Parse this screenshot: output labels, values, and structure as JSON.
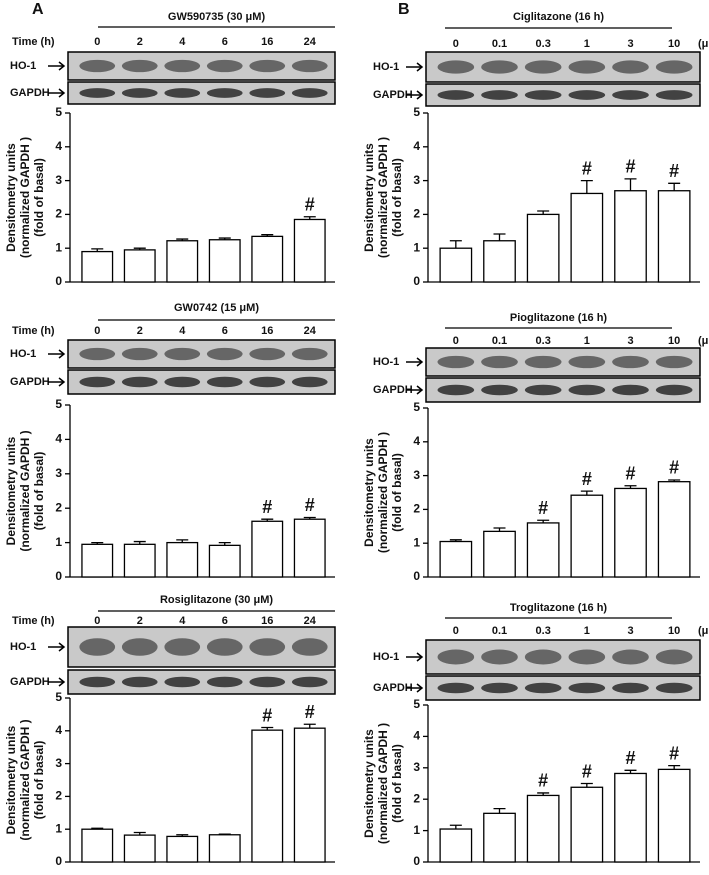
{
  "chart_data": [
    {
      "type": "bar",
      "panel_label": "A",
      "title": "GW590735 (30 μM)",
      "xlabel": "Time (h)",
      "categories": [
        "0",
        "2",
        "4",
        "6",
        "16",
        "24"
      ],
      "values": [
        0.9,
        0.95,
        1.22,
        1.25,
        1.35,
        1.85
      ],
      "errors": [
        0.08,
        0.05,
        0.05,
        0.05,
        0.05,
        0.08
      ],
      "significance": [
        null,
        null,
        null,
        null,
        null,
        "#"
      ],
      "blot_labels": [
        "HO-1",
        "GAPDH"
      ],
      "ylabel": [
        "Densitometry units",
        "(normalized GAPDH )",
        "(fold of basal)"
      ],
      "ylim": [
        0,
        5
      ],
      "yticks": [
        0,
        1,
        2,
        3,
        4,
        5
      ],
      "color": "#ffffff"
    },
    {
      "type": "bar",
      "title": "GW0742 (15 μM)",
      "xlabel": "Time (h)",
      "categories": [
        "0",
        "2",
        "4",
        "6",
        "16",
        "24"
      ],
      "values": [
        0.95,
        0.95,
        1.0,
        0.92,
        1.62,
        1.68
      ],
      "errors": [
        0.05,
        0.08,
        0.08,
        0.08,
        0.06,
        0.05
      ],
      "significance": [
        null,
        null,
        null,
        null,
        "#",
        "#"
      ],
      "blot_labels": [
        "HO-1",
        "GAPDH"
      ],
      "ylabel": [
        "Densitometry units",
        "(normalized GAPDH )",
        "(fold of basal)"
      ],
      "ylim": [
        0,
        5
      ],
      "yticks": [
        0,
        1,
        2,
        3,
        4,
        5
      ],
      "color": "#ffffff"
    },
    {
      "type": "bar",
      "title": "Rosiglitazone (30 μM)",
      "xlabel": "Time (h)",
      "categories": [
        "0",
        "2",
        "4",
        "6",
        "16",
        "24"
      ],
      "values": [
        1.0,
        0.82,
        0.78,
        0.83,
        4.02,
        4.08
      ],
      "errors": [
        0.03,
        0.08,
        0.05,
        0.02,
        0.08,
        0.12
      ],
      "significance": [
        null,
        null,
        null,
        null,
        "#",
        "#"
      ],
      "blot_labels": [
        "HO-1",
        "GAPDH"
      ],
      "ylabel": [
        "Densitometry units",
        "(normalized GAPDH )",
        "(fold of basal)"
      ],
      "ylim": [
        0,
        5
      ],
      "yticks": [
        0,
        1,
        2,
        3,
        4,
        5
      ],
      "color": "#ffffff"
    },
    {
      "type": "bar",
      "panel_label": "B",
      "title": "Ciglitazone (16 h)",
      "unit_label": "(μM)",
      "categories": [
        "0",
        "0.1",
        "0.3",
        "1",
        "3",
        "10"
      ],
      "values": [
        1.0,
        1.22,
        2.0,
        2.62,
        2.7,
        2.7
      ],
      "errors": [
        0.22,
        0.2,
        0.1,
        0.38,
        0.35,
        0.22
      ],
      "significance": [
        null,
        null,
        null,
        "#",
        "#",
        "#"
      ],
      "blot_labels": [
        "HO-1",
        "GAPDH"
      ],
      "ylabel": [
        "Densitometry units",
        "(normalized GAPDH )",
        "(fold of basal)"
      ],
      "ylim": [
        0,
        5
      ],
      "yticks": [
        0,
        1,
        2,
        3,
        4,
        5
      ],
      "color": "#ffffff"
    },
    {
      "type": "bar",
      "title": "Pioglitazone (16 h)",
      "unit_label": "(μM)",
      "categories": [
        "0",
        "0.1",
        "0.3",
        "1",
        "3",
        "10"
      ],
      "values": [
        1.05,
        1.35,
        1.6,
        2.42,
        2.62,
        2.82
      ],
      "errors": [
        0.05,
        0.1,
        0.08,
        0.12,
        0.08,
        0.05
      ],
      "significance": [
        null,
        null,
        "#",
        "#",
        "#",
        "#"
      ],
      "blot_labels": [
        "HO-1",
        "GAPDH"
      ],
      "ylabel": [
        "Densitometry units",
        "(normalized GAPDH )",
        "(fold of basal)"
      ],
      "ylim": [
        0,
        5
      ],
      "yticks": [
        0,
        1,
        2,
        3,
        4,
        5
      ],
      "color": "#ffffff"
    },
    {
      "type": "bar",
      "title": "Troglitazone (16 h)",
      "unit_label": "(μM)",
      "categories": [
        "0",
        "0.1",
        "0.3",
        "1",
        "3",
        "10"
      ],
      "values": [
        1.05,
        1.55,
        2.12,
        2.38,
        2.82,
        2.95
      ],
      "errors": [
        0.12,
        0.15,
        0.08,
        0.12,
        0.1,
        0.12
      ],
      "significance": [
        null,
        null,
        "#",
        "#",
        "#",
        "#"
      ],
      "blot_labels": [
        "HO-1",
        "GAPDH"
      ],
      "ylabel": [
        "Densitometry units",
        "(normalized GAPDH )",
        "(fold of basal)"
      ],
      "ylim": [
        0,
        5
      ],
      "yticks": [
        0,
        1,
        2,
        3,
        4,
        5
      ],
      "color": "#ffffff"
    }
  ]
}
